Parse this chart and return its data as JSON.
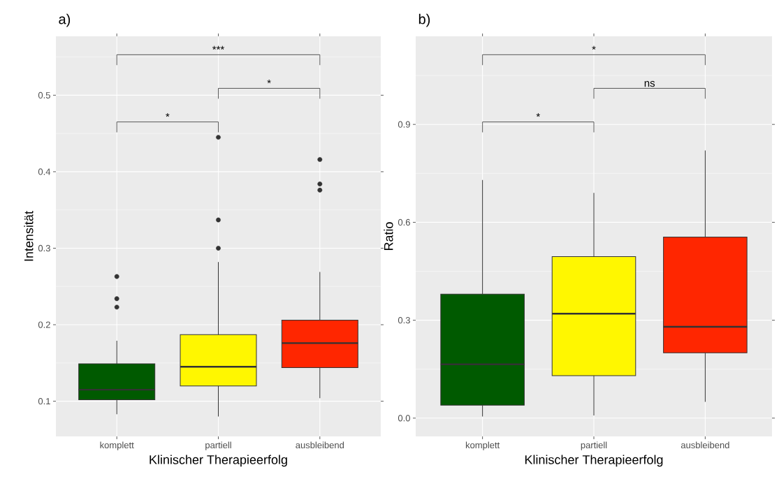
{
  "chart_data": [
    {
      "type": "box",
      "title": "a)",
      "xlabel": "Klinischer Therapieerfolg",
      "ylabel": "Intensität",
      "categories": [
        "komplett",
        "partiell",
        "ausbleibend"
      ],
      "colors": [
        "#005a00",
        "#fff700",
        "#ff2600"
      ],
      "boxes": [
        {
          "low": 0.083,
          "q1": 0.102,
          "median": 0.115,
          "q3": 0.149,
          "high": 0.179,
          "outliers": [
            0.263,
            0.234,
            0.223
          ]
        },
        {
          "low": 0.08,
          "q1": 0.12,
          "median": 0.145,
          "q3": 0.187,
          "high": 0.282,
          "outliers": [
            0.445,
            0.337,
            0.3
          ]
        },
        {
          "low": 0.104,
          "q1": 0.144,
          "median": 0.176,
          "q3": 0.206,
          "high": 0.269,
          "outliers": [
            0.416,
            0.384,
            0.376
          ]
        }
      ],
      "ylim": [
        0.054,
        0.577
      ],
      "yticks": [
        0.1,
        0.2,
        0.3,
        0.4,
        0.5
      ],
      "grid": true,
      "annotations": [
        "*",
        "*",
        "***"
      ]
    },
    {
      "type": "box",
      "title": "b)",
      "xlabel": "Klinischer Therapieerfolg",
      "ylabel": "Ratio",
      "categories": [
        "komplett",
        "partiell",
        "ausbleibend"
      ],
      "colors": [
        "#005a00",
        "#fff700",
        "#ff2600"
      ],
      "boxes": [
        {
          "low": 0.005,
          "q1": 0.04,
          "median": 0.165,
          "q3": 0.38,
          "high": 0.73
        },
        {
          "low": 0.008,
          "q1": 0.13,
          "median": 0.32,
          "q3": 0.495,
          "high": 0.69
        },
        {
          "low": 0.05,
          "q1": 0.2,
          "median": 0.28,
          "q3": 0.555,
          "high": 0.82
        }
      ],
      "ylim": [
        -0.056,
        1.17
      ],
      "yticks": [
        {
          "value": 0.0,
          "label": "0.0"
        },
        {
          "value": 0.3,
          "label": "0.3"
        },
        {
          "value": 0.6,
          "label": "0.6"
        },
        {
          "value": 0.9,
          "label": "0.9"
        }
      ],
      "grid": true,
      "annotations": [
        "*",
        "ns",
        "*"
      ]
    }
  ]
}
